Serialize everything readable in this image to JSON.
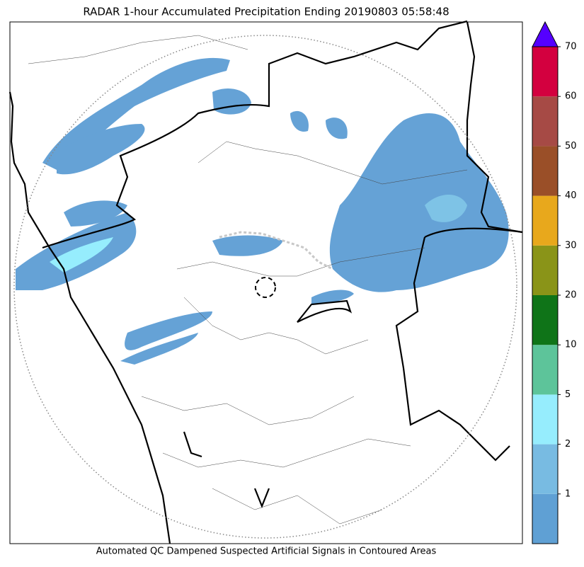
{
  "title": "RADAR 1-hour Accumulated Precipitation Ending 20190803 05:58:48",
  "caption": "Automated QC Dampened Suspected Artificial Signals in Contoured Areas",
  "colorbar": {
    "ticks": [
      1,
      2,
      5,
      10,
      20,
      30,
      40,
      50,
      60,
      70
    ],
    "colors": [
      "#5fa0d4",
      "#78bbe2",
      "#96edfd",
      "#5dc49a",
      "#0f7418",
      "#8a9418",
      "#e8a81c",
      "#9a4f28",
      "#a64a45",
      "#d3003f"
    ],
    "over_color": "#5500ff"
  }
}
